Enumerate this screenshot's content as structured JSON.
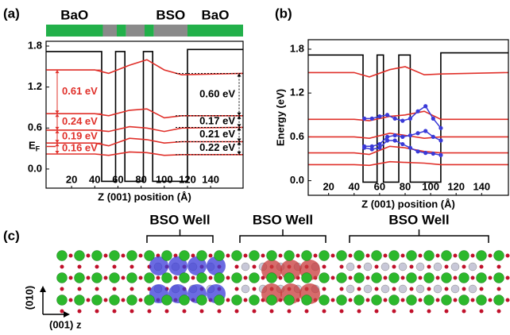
{
  "chart_data": [
    {
      "type": "line",
      "panel_label": "(a)",
      "xlabel": "Z (001) position (Å)",
      "xlim": [
        -2,
        168
      ],
      "ylim": [
        -0.28,
        1.87
      ],
      "xticks": [
        20,
        40,
        60,
        80,
        100,
        120,
        140
      ],
      "yticks": [
        {
          "value": 0,
          "label": "0.0"
        },
        0.6,
        1.2,
        1.8
      ],
      "fermi_level": 0.33,
      "fermi_label": {
        "main": "E",
        "sub": "F"
      },
      "layer_bar": [
        {
          "x0": -2,
          "x1": 47,
          "color": "#22b04a",
          "label": "BaO"
        },
        {
          "x0": 47,
          "x1": 59,
          "color": "#8a8a8a"
        },
        {
          "x0": 59,
          "x1": 67,
          "color": "#22b04a"
        },
        {
          "x0": 67,
          "x1": 83,
          "color": "#8a8a8a"
        },
        {
          "x0": 83,
          "x1": 91,
          "color": "#22b04a"
        },
        {
          "x0": 91,
          "x1": 120,
          "color": "#8a8a8a",
          "label": "BSO"
        },
        {
          "x0": 120,
          "x1": 168,
          "color": "#22b04a",
          "label": "BaO"
        }
      ],
      "series": [
        {
          "color": "#000000",
          "x": [
            -2,
            46,
            46,
            58,
            58,
            66,
            66,
            82,
            82,
            90,
            90,
            120,
            120,
            168
          ],
          "values": [
            1.72,
            1.72,
            -0.18,
            -0.18,
            1.72,
            1.72,
            -0.18,
            -0.18,
            1.72,
            1.72,
            -0.18,
            -0.18,
            1.75,
            1.75
          ]
        },
        {
          "color": "#e0302a",
          "x": [
            -2,
            40,
            52,
            70,
            85,
            100,
            115,
            168
          ],
          "values": [
            0.22,
            0.22,
            0.2,
            0.25,
            0.24,
            0.2,
            0.21,
            0.21
          ]
        },
        {
          "color": "#e0302a",
          "x": [
            -2,
            40,
            52,
            70,
            85,
            100,
            115,
            168
          ],
          "values": [
            0.38,
            0.38,
            0.34,
            0.45,
            0.43,
            0.38,
            0.4,
            0.4
          ]
        },
        {
          "color": "#e0302a",
          "x": [
            -2,
            40,
            52,
            70,
            85,
            100,
            115,
            168
          ],
          "values": [
            0.57,
            0.57,
            0.55,
            0.62,
            0.6,
            0.55,
            0.6,
            0.61
          ]
        },
        {
          "color": "#e0302a",
          "x": [
            -2,
            40,
            52,
            70,
            85,
            100,
            115,
            168
          ],
          "values": [
            0.81,
            0.81,
            0.78,
            0.86,
            0.88,
            0.75,
            0.78,
            0.78
          ]
        },
        {
          "color": "#e0302a",
          "x": [
            -2,
            40,
            52,
            70,
            85,
            100,
            115,
            168
          ],
          "values": [
            1.45,
            1.45,
            1.4,
            1.52,
            1.6,
            1.45,
            1.38,
            1.4
          ]
        }
      ],
      "annotations_left": [
        {
          "text": "0.16 eV",
          "color": "#e0302a"
        },
        {
          "text": "0.19 eV",
          "color": "#e0302a"
        },
        {
          "text": "0.24 eV",
          "color": "#e0302a"
        },
        {
          "text": "0.61 eV",
          "color": "#e0302a"
        }
      ],
      "annotations_right": [
        {
          "text": "0.22 eV",
          "color": "#000000"
        },
        {
          "text": "0.21 eV",
          "color": "#000000"
        },
        {
          "text": "0.17 eV",
          "color": "#000000"
        },
        {
          "text": "0.60 eV",
          "color": "#000000"
        }
      ]
    },
    {
      "type": "line",
      "panel_label": "(b)",
      "xlabel": "Z (001) position (Å)",
      "ylabel": "Energy (eV)",
      "xlim": [
        4,
        161
      ],
      "ylim": [
        -0.2,
        1.93
      ],
      "xticks": [
        20,
        40,
        60,
        80,
        100,
        120,
        140
      ],
      "yticks": [
        {
          "value": 0,
          "label": "0.0"
        },
        0.6,
        1.2,
        1.8
      ],
      "series": [
        {
          "color": "#000000",
          "x": [
            4,
            47,
            47,
            58,
            58,
            63,
            63,
            75,
            75,
            84,
            84,
            108,
            108,
            161
          ],
          "values": [
            1.72,
            1.72,
            -0.02,
            -0.02,
            1.72,
            1.72,
            -0.02,
            -0.02,
            1.72,
            1.72,
            -0.02,
            -0.02,
            1.75,
            1.75
          ]
        },
        {
          "color": "#e0302a",
          "x": [
            4,
            40,
            52,
            68,
            80,
            95,
            108,
            161
          ],
          "values": [
            0.22,
            0.22,
            0.21,
            0.26,
            0.25,
            0.24,
            0.22,
            0.22
          ]
        },
        {
          "color": "#e0302a",
          "x": [
            4,
            40,
            52,
            68,
            80,
            95,
            108,
            161
          ],
          "values": [
            0.38,
            0.38,
            0.36,
            0.47,
            0.45,
            0.4,
            0.38,
            0.38
          ]
        },
        {
          "color": "#e0302a",
          "x": [
            4,
            40,
            52,
            68,
            80,
            95,
            108,
            161
          ],
          "values": [
            0.6,
            0.6,
            0.58,
            0.65,
            0.62,
            0.58,
            0.6,
            0.6
          ]
        },
        {
          "color": "#e0302a",
          "x": [
            4,
            40,
            52,
            68,
            80,
            95,
            108,
            161
          ],
          "values": [
            0.84,
            0.84,
            0.82,
            0.88,
            0.9,
            0.95,
            0.84,
            0.84
          ]
        },
        {
          "color": "#e0302a",
          "x": [
            4,
            40,
            52,
            68,
            80,
            95,
            108,
            161
          ],
          "values": [
            1.48,
            1.48,
            1.42,
            1.52,
            1.56,
            1.45,
            1.46,
            1.48
          ]
        },
        {
          "color": "#3a3ad8",
          "markers": true,
          "x": [
            48,
            54,
            60,
            66,
            72,
            78,
            84,
            90,
            96,
            102,
            108
          ],
          "values": [
            0.85,
            0.85,
            0.88,
            0.9,
            0.85,
            0.82,
            0.85,
            0.95,
            1.02,
            0.85,
            0.72
          ]
        },
        {
          "color": "#3a3ad8",
          "markers": true,
          "x": [
            48,
            54,
            60,
            66,
            72,
            78,
            84,
            90,
            96,
            102,
            108
          ],
          "values": [
            0.47,
            0.47,
            0.5,
            0.6,
            0.62,
            0.6,
            0.62,
            0.65,
            0.68,
            0.6,
            0.55
          ]
        },
        {
          "color": "#3a3ad8",
          "markers": true,
          "x": [
            48,
            54,
            60,
            66,
            72,
            78,
            84,
            90,
            96,
            102,
            108
          ],
          "values": [
            0.45,
            0.43,
            0.45,
            0.55,
            0.55,
            0.5,
            0.45,
            0.4,
            0.38,
            0.37,
            0.35
          ]
        }
      ]
    }
  ],
  "panel_c": {
    "panel_label": "(c)",
    "wells": [
      "BSO Well",
      "BSO Well",
      "BSO Well"
    ],
    "axis_vertical": "(010)",
    "axis_horizontal": "(001) z"
  }
}
